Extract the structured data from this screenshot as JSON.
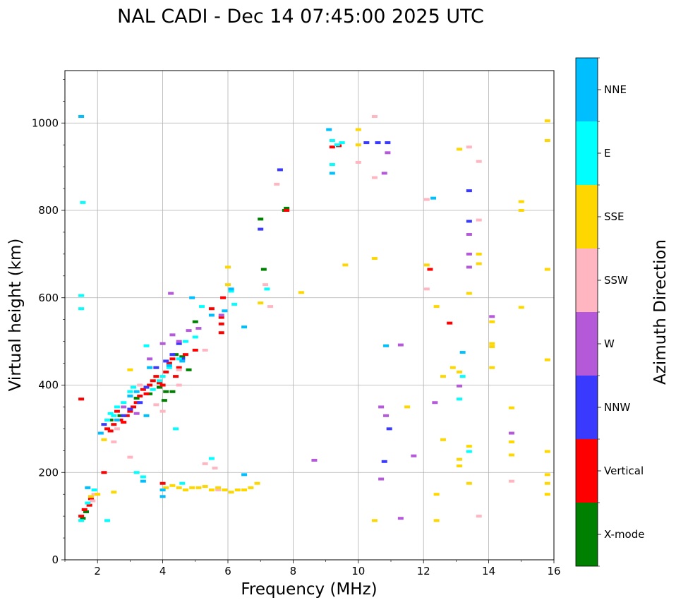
{
  "chart_data": {
    "type": "scatter",
    "title": "NAL CADI - Dec 14 07:45:00 2025 UTC",
    "xlabel": "Frequency (MHz)",
    "ylabel": "Virtual height (km)",
    "xlim": [
      1,
      16
    ],
    "ylim": [
      0,
      1120
    ],
    "xticks": [
      2,
      4,
      6,
      8,
      10,
      12,
      14,
      16
    ],
    "yticks": [
      0,
      200,
      400,
      600,
      800,
      1000
    ],
    "grid": true,
    "colorbar": {
      "label": "Azimuth Direction",
      "categories": [
        {
          "name": "X-mode",
          "color": "#008000"
        },
        {
          "name": "Vertical",
          "color": "#ff0000"
        },
        {
          "name": "NNW",
          "color": "#3a3aff"
        },
        {
          "name": "W",
          "color": "#b45ad8"
        },
        {
          "name": "SSW",
          "color": "#ffb6c1"
        },
        {
          "name": "SSE",
          "color": "#ffd700"
        },
        {
          "name": "E",
          "color": "#00ffff"
        },
        {
          "name": "NNE",
          "color": "#00bfff"
        }
      ]
    },
    "series": [
      {
        "name": "X-mode",
        "points": [
          [
            1.55,
            95
          ],
          [
            1.65,
            110
          ],
          [
            2.4,
            320
          ],
          [
            2.7,
            330
          ],
          [
            3.2,
            370
          ],
          [
            3.6,
            380
          ],
          [
            3.9,
            395
          ],
          [
            4.05,
            365
          ],
          [
            4.1,
            385
          ],
          [
            4.3,
            385
          ],
          [
            4.4,
            470
          ],
          [
            4.6,
            465
          ],
          [
            4.8,
            435
          ],
          [
            5.0,
            545
          ],
          [
            7.0,
            780
          ],
          [
            7.1,
            665
          ],
          [
            7.75,
            800
          ],
          [
            7.8,
            805
          ]
        ]
      },
      {
        "name": "Vertical",
        "points": [
          [
            1.5,
            100
          ],
          [
            1.5,
            368
          ],
          [
            1.6,
            115
          ],
          [
            1.75,
            125
          ],
          [
            1.8,
            140
          ],
          [
            2.2,
            200
          ],
          [
            2.3,
            300
          ],
          [
            2.4,
            295
          ],
          [
            2.5,
            310
          ],
          [
            2.6,
            340
          ],
          [
            2.7,
            320
          ],
          [
            2.8,
            315
          ],
          [
            2.9,
            330
          ],
          [
            3.0,
            340
          ],
          [
            3.1,
            350
          ],
          [
            3.2,
            360
          ],
          [
            3.3,
            375
          ],
          [
            3.4,
            390
          ],
          [
            3.5,
            380
          ],
          [
            3.6,
            400
          ],
          [
            3.7,
            410
          ],
          [
            3.8,
            420
          ],
          [
            3.9,
            405
          ],
          [
            4.0,
            175
          ],
          [
            4.0,
            400
          ],
          [
            4.1,
            430
          ],
          [
            4.2,
            450
          ],
          [
            4.3,
            460
          ],
          [
            4.4,
            420
          ],
          [
            4.5,
            440
          ],
          [
            4.7,
            470
          ],
          [
            5.0,
            480
          ],
          [
            5.5,
            575
          ],
          [
            5.8,
            520
          ],
          [
            5.8,
            540
          ],
          [
            5.8,
            555
          ],
          [
            5.85,
            600
          ],
          [
            7.8,
            800
          ],
          [
            9.2,
            945
          ],
          [
            9.4,
            948
          ],
          [
            12.2,
            665
          ],
          [
            12.8,
            542
          ]
        ]
      },
      {
        "name": "NNW",
        "points": [
          [
            2.2,
            310
          ],
          [
            2.8,
            330
          ],
          [
            3.0,
            345
          ],
          [
            3.3,
            360
          ],
          [
            3.5,
            395
          ],
          [
            3.8,
            440
          ],
          [
            4.1,
            455
          ],
          [
            4.3,
            470
          ],
          [
            4.5,
            495
          ],
          [
            4.6,
            460
          ],
          [
            7.0,
            757
          ],
          [
            7.6,
            893
          ],
          [
            10.25,
            955
          ],
          [
            10.6,
            955
          ],
          [
            10.8,
            225
          ],
          [
            10.9,
            955
          ],
          [
            10.95,
            300
          ],
          [
            13.4,
            775
          ],
          [
            13.4,
            845
          ]
        ]
      },
      {
        "name": "W",
        "points": [
          [
            2.8,
            350
          ],
          [
            3.2,
            335
          ],
          [
            3.6,
            460
          ],
          [
            4.0,
            495
          ],
          [
            4.25,
            610
          ],
          [
            4.3,
            515
          ],
          [
            4.5,
            500
          ],
          [
            4.8,
            525
          ],
          [
            5.1,
            530
          ],
          [
            5.8,
            560
          ],
          [
            8.65,
            228
          ],
          [
            10.7,
            350
          ],
          [
            10.7,
            185
          ],
          [
            10.8,
            885
          ],
          [
            10.85,
            330
          ],
          [
            10.9,
            932
          ],
          [
            11.3,
            492
          ],
          [
            11.3,
            95
          ],
          [
            11.7,
            238
          ],
          [
            12.35,
            360
          ],
          [
            13.1,
            398
          ],
          [
            13.4,
            745
          ],
          [
            13.4,
            700
          ],
          [
            13.4,
            670
          ],
          [
            14.1,
            557
          ],
          [
            14.7,
            290
          ]
        ]
      },
      {
        "name": "SSW",
        "points": [
          [
            1.85,
            135
          ],
          [
            1.9,
            150
          ],
          [
            2.5,
            270
          ],
          [
            2.6,
            300
          ],
          [
            3.0,
            235
          ],
          [
            3.3,
            400
          ],
          [
            3.8,
            355
          ],
          [
            4.0,
            340
          ],
          [
            4.5,
            400
          ],
          [
            4.5,
            435
          ],
          [
            5.3,
            480
          ],
          [
            5.3,
            220
          ],
          [
            5.6,
            210
          ],
          [
            5.7,
            160
          ],
          [
            7.15,
            630
          ],
          [
            7.3,
            580
          ],
          [
            7.5,
            860
          ],
          [
            10.0,
            910
          ],
          [
            10.5,
            875
          ],
          [
            10.5,
            1015
          ],
          [
            12.1,
            620
          ],
          [
            12.1,
            825
          ],
          [
            13.4,
            945
          ],
          [
            13.7,
            912
          ],
          [
            13.7,
            778
          ],
          [
            14.7,
            180
          ],
          [
            13.7,
            100
          ]
        ]
      },
      {
        "name": "SSE",
        "points": [
          [
            1.8,
            145
          ],
          [
            2.0,
            150
          ],
          [
            2.2,
            275
          ],
          [
            2.5,
            155
          ],
          [
            3.0,
            435
          ],
          [
            4.0,
            160
          ],
          [
            4.1,
            165
          ],
          [
            4.3,
            170
          ],
          [
            4.5,
            165
          ],
          [
            4.7,
            160
          ],
          [
            4.9,
            165
          ],
          [
            5.1,
            165
          ],
          [
            5.3,
            168
          ],
          [
            5.5,
            160
          ],
          [
            5.7,
            165
          ],
          [
            5.9,
            160
          ],
          [
            6.1,
            155
          ],
          [
            6.3,
            160
          ],
          [
            6.5,
            160
          ],
          [
            6.7,
            165
          ],
          [
            6.9,
            175
          ],
          [
            6.0,
            670
          ],
          [
            6.0,
            630
          ],
          [
            7.0,
            588
          ],
          [
            8.25,
            612
          ],
          [
            9.6,
            675
          ],
          [
            10.0,
            985
          ],
          [
            10.0,
            950
          ],
          [
            10.5,
            690
          ],
          [
            10.5,
            90
          ],
          [
            11.5,
            350
          ],
          [
            12.1,
            675
          ],
          [
            12.4,
            580
          ],
          [
            12.4,
            150
          ],
          [
            12.4,
            90
          ],
          [
            12.6,
            420
          ],
          [
            12.6,
            275
          ],
          [
            12.9,
            440
          ],
          [
            13.1,
            940
          ],
          [
            13.1,
            430
          ],
          [
            13.1,
            230
          ],
          [
            13.1,
            215
          ],
          [
            13.4,
            610
          ],
          [
            13.4,
            260
          ],
          [
            13.4,
            175
          ],
          [
            13.7,
            700
          ],
          [
            13.7,
            678
          ],
          [
            14.1,
            495
          ],
          [
            14.1,
            488
          ],
          [
            14.1,
            545
          ],
          [
            14.1,
            440
          ],
          [
            14.7,
            348
          ],
          [
            14.7,
            270
          ],
          [
            14.7,
            240
          ],
          [
            15.0,
            820
          ],
          [
            15.0,
            800
          ],
          [
            15.0,
            578
          ],
          [
            15.8,
            1005
          ],
          [
            15.8,
            960
          ],
          [
            15.8,
            665
          ],
          [
            15.8,
            458
          ],
          [
            15.8,
            248
          ],
          [
            15.8,
            195
          ],
          [
            15.8,
            175
          ],
          [
            15.8,
            150
          ]
        ]
      },
      {
        "name": "E",
        "points": [
          [
            1.5,
            90
          ],
          [
            1.7,
            130
          ],
          [
            1.9,
            160
          ],
          [
            2.3,
            320
          ],
          [
            2.4,
            335
          ],
          [
            2.5,
            330
          ],
          [
            2.6,
            350
          ],
          [
            2.8,
            360
          ],
          [
            3.0,
            385
          ],
          [
            3.1,
            395
          ],
          [
            3.2,
            200
          ],
          [
            3.4,
            190
          ],
          [
            3.5,
            490
          ],
          [
            3.7,
            390
          ],
          [
            3.9,
            410
          ],
          [
            4.0,
            420
          ],
          [
            4.2,
            440
          ],
          [
            4.4,
            300
          ],
          [
            4.5,
            460
          ],
          [
            4.6,
            175
          ],
          [
            4.7,
            500
          ],
          [
            5.0,
            510
          ],
          [
            5.2,
            580
          ],
          [
            5.5,
            232
          ],
          [
            6.1,
            615
          ],
          [
            6.2,
            585
          ],
          [
            7.2,
            620
          ],
          [
            9.2,
            960
          ],
          [
            9.35,
            950
          ],
          [
            9.5,
            955
          ],
          [
            9.2,
            905
          ],
          [
            13.1,
            368
          ],
          [
            13.2,
            420
          ],
          [
            13.4,
            248
          ],
          [
            1.55,
            818
          ],
          [
            1.5,
            605
          ],
          [
            1.5,
            575
          ],
          [
            2.3,
            90
          ]
        ]
      },
      {
        "name": "NNE",
        "points": [
          [
            1.5,
            1015
          ],
          [
            1.7,
            165
          ],
          [
            2.1,
            290
          ],
          [
            2.6,
            320
          ],
          [
            3.0,
            375
          ],
          [
            3.2,
            385
          ],
          [
            3.4,
            180
          ],
          [
            3.5,
            330
          ],
          [
            3.6,
            440
          ],
          [
            4.0,
            160
          ],
          [
            4.0,
            145
          ],
          [
            4.2,
            445
          ],
          [
            4.6,
            455
          ],
          [
            4.9,
            600
          ],
          [
            5.5,
            560
          ],
          [
            5.9,
            570
          ],
          [
            6.1,
            620
          ],
          [
            6.5,
            533
          ],
          [
            6.5,
            195
          ],
          [
            9.1,
            985
          ],
          [
            9.2,
            885
          ],
          [
            10.85,
            490
          ],
          [
            12.3,
            828
          ],
          [
            13.2,
            475
          ]
        ]
      }
    ]
  }
}
